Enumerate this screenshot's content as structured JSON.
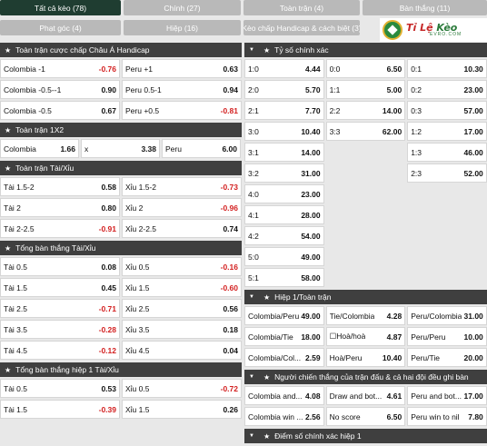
{
  "tabs": [
    {
      "label": "Tất cả kèo (78)",
      "active": true
    },
    {
      "label": "Chính (27)"
    },
    {
      "label": "Toàn trận (4)"
    },
    {
      "label": "Bàn thắng (11)"
    },
    {
      "label": "Phạt góc (4)"
    },
    {
      "label": "Hiệp (16)"
    },
    {
      "label": "Kèo chấp Handicap & cách biệt (3)"
    }
  ],
  "logo": {
    "brand_a": "Tỉ Lệ ",
    "brand_b": "Kèo",
    "sub": "EVRO.COM"
  },
  "icons": {
    "star": "star-icon",
    "chevron": "chevron-down-icon"
  },
  "colors": {
    "header_bg": "#3f3f3f",
    "active_tab": "#1f3d31",
    "tab_bg": "#b9b9b9",
    "negative": "#d32020"
  },
  "left": [
    {
      "title": "Toàn trận cược chấp Châu Á Handicap",
      "rows": [
        [
          {
            "n": "Colombia -1",
            "o": "-0.76",
            "neg": true
          },
          {
            "n": "Peru +1",
            "o": "0.63"
          }
        ],
        [
          {
            "n": "Colombia -0.5--1",
            "o": "0.90"
          },
          {
            "n": "Peru 0.5-1",
            "o": "0.94"
          }
        ],
        [
          {
            "n": "Colombia -0.5",
            "o": "0.67"
          },
          {
            "n": "Peru +0.5",
            "o": "-0.81",
            "neg": true
          }
        ]
      ]
    },
    {
      "title": "Toàn trận 1X2",
      "rows": [
        [
          {
            "n": "Colombia",
            "o": "1.66"
          },
          {
            "n": "x",
            "o": "3.38"
          },
          {
            "n": "Peru",
            "o": "6.00"
          }
        ]
      ]
    },
    {
      "title": "Toàn trận Tài/Xỉu",
      "rows": [
        [
          {
            "n": "Tài 1.5-2",
            "o": "0.58"
          },
          {
            "n": "Xỉu 1.5-2",
            "o": "-0.73",
            "neg": true
          }
        ],
        [
          {
            "n": "Tài 2",
            "o": "0.80"
          },
          {
            "n": "Xỉu 2",
            "o": "-0.96",
            "neg": true
          }
        ],
        [
          {
            "n": "Tài 2-2.5",
            "o": "-0.91",
            "neg": true
          },
          {
            "n": "Xỉu 2-2.5",
            "o": "0.74"
          }
        ]
      ]
    },
    {
      "title": "Tổng bàn thắng Tài/Xỉu",
      "rows": [
        [
          {
            "n": "Tài 0.5",
            "o": "0.08"
          },
          {
            "n": "Xỉu 0.5",
            "o": "-0.16",
            "neg": true
          }
        ],
        [
          {
            "n": "Tài 1.5",
            "o": "0.45"
          },
          {
            "n": "Xỉu 1.5",
            "o": "-0.60",
            "neg": true
          }
        ],
        [
          {
            "n": "Tài 2.5",
            "o": "-0.71",
            "neg": true
          },
          {
            "n": "Xỉu 2.5",
            "o": "0.56"
          }
        ],
        [
          {
            "n": "Tài 3.5",
            "o": "-0.28",
            "neg": true
          },
          {
            "n": "Xỉu 3.5",
            "o": "0.18"
          }
        ],
        [
          {
            "n": "Tài 4.5",
            "o": "-0.12",
            "neg": true
          },
          {
            "n": "Xỉu 4.5",
            "o": "0.04"
          }
        ]
      ]
    },
    {
      "title": "Tổng bàn thắng hiệp 1 Tài/Xỉu",
      "rows": [
        [
          {
            "n": "Tài 0.5",
            "o": "0.53"
          },
          {
            "n": "Xỉu 0.5",
            "o": "-0.72",
            "neg": true
          }
        ],
        [
          {
            "n": "Tài 1.5",
            "o": "-0.39",
            "neg": true
          },
          {
            "n": "Xỉu 1.5",
            "o": "0.26"
          }
        ]
      ]
    }
  ],
  "right": [
    {
      "title": "Tỷ số chính xác",
      "rows": [
        [
          {
            "n": "1:0",
            "o": "4.44"
          },
          {
            "n": "0:0",
            "o": "6.50"
          },
          {
            "n": "0:1",
            "o": "10.30"
          }
        ],
        [
          {
            "n": "2:0",
            "o": "5.70"
          },
          {
            "n": "1:1",
            "o": "5.00"
          },
          {
            "n": "0:2",
            "o": "23.00"
          }
        ],
        [
          {
            "n": "2:1",
            "o": "7.70"
          },
          {
            "n": "2:2",
            "o": "14.00"
          },
          {
            "n": "0:3",
            "o": "57.00"
          }
        ],
        [
          {
            "n": "3:0",
            "o": "10.40"
          },
          {
            "n": "3:3",
            "o": "62.00"
          },
          {
            "n": "1:2",
            "o": "17.00"
          }
        ],
        [
          {
            "n": "3:1",
            "o": "14.00"
          },
          null,
          {
            "n": "1:3",
            "o": "46.00"
          }
        ],
        [
          {
            "n": "3:2",
            "o": "31.00"
          },
          null,
          {
            "n": "2:3",
            "o": "52.00"
          }
        ],
        [
          {
            "n": "4:0",
            "o": "23.00"
          },
          null,
          null
        ],
        [
          {
            "n": "4:1",
            "o": "28.00"
          },
          null,
          null
        ],
        [
          {
            "n": "4:2",
            "o": "54.00"
          },
          null,
          null
        ],
        [
          {
            "n": "5:0",
            "o": "49.00"
          },
          null,
          null
        ],
        [
          {
            "n": "5:1",
            "o": "58.00"
          },
          null,
          null
        ]
      ]
    },
    {
      "title": "Hiệp 1/Toàn trận",
      "rows": [
        [
          {
            "n": "Colombia/Peru",
            "o": "49.00"
          },
          {
            "n": "Tie/Colombia",
            "o": "4.28"
          },
          {
            "n": "Peru/Colombia",
            "o": "31.00"
          }
        ],
        [
          {
            "n": "Colombia/Tie",
            "o": "18.00"
          },
          {
            "n": "☐Hoà/hoà",
            "o": "4.87"
          },
          {
            "n": "Peru/Peru",
            "o": "10.00"
          }
        ],
        [
          {
            "n": "Colombia/Col...",
            "o": "2.59"
          },
          {
            "n": "Hoà/Peru",
            "o": "10.40"
          },
          {
            "n": "Peru/Tie",
            "o": "20.00"
          }
        ]
      ]
    },
    {
      "title": "Người chiến thắng của trận đấu & cả hai đội đều ghi bàn",
      "rows": [
        [
          {
            "n": "Colombia and...",
            "o": "4.08"
          },
          {
            "n": "Draw and bot...",
            "o": "4.61"
          },
          {
            "n": "Peru and bot...",
            "o": "17.00"
          }
        ],
        [
          {
            "n": "Colombia win ...",
            "o": "2.56"
          },
          {
            "n": "No score",
            "o": "6.50"
          },
          {
            "n": "Peru win to nil",
            "o": "7.80"
          }
        ]
      ]
    },
    {
      "title": "Điểm số chính xác hiệp 1",
      "rows": []
    }
  ]
}
